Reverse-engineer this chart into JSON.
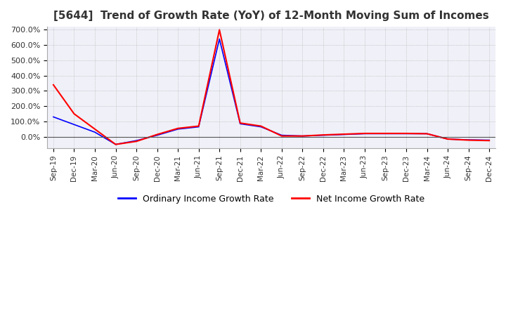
{
  "title": "[5644]  Trend of Growth Rate (YoY) of 12-Month Moving Sum of Incomes",
  "title_fontsize": 11,
  "ylim": [
    -75,
    720
  ],
  "yticks": [
    0,
    100,
    200,
    300,
    400,
    500,
    600,
    700
  ],
  "ytick_labels": [
    "0.0%",
    "100.0%",
    "200.0%",
    "300.0%",
    "400.0%",
    "500.0%",
    "600.0%",
    "700.0%"
  ],
  "legend_labels": [
    "Ordinary Income Growth Rate",
    "Net Income Growth Rate"
  ],
  "legend_colors": [
    "#0000ff",
    "#ff0000"
  ],
  "background_color": "#ffffff",
  "plot_bg_color": "#f0f0f8",
  "dates": [
    "Sep-19",
    "Dec-19",
    "Mar-20",
    "Jun-20",
    "Sep-20",
    "Dec-20",
    "Mar-21",
    "Jun-21",
    "Sep-21",
    "Dec-21",
    "Mar-22",
    "Jun-22",
    "Sep-22",
    "Dec-22",
    "Mar-23",
    "Jun-23",
    "Sep-23",
    "Dec-23",
    "Mar-24",
    "Jun-24",
    "Sep-24",
    "Dec-24"
  ],
  "ordinary_income_growth": [
    130,
    80,
    30,
    -50,
    -25,
    10,
    50,
    65,
    640,
    85,
    65,
    10,
    5,
    10,
    15,
    20,
    20,
    20,
    20,
    -15,
    -20,
    -22
  ],
  "net_income_growth": [
    340,
    150,
    50,
    -50,
    -30,
    15,
    55,
    70,
    700,
    90,
    70,
    5,
    5,
    12,
    17,
    22,
    22,
    22,
    20,
    -15,
    -22,
    -25
  ]
}
